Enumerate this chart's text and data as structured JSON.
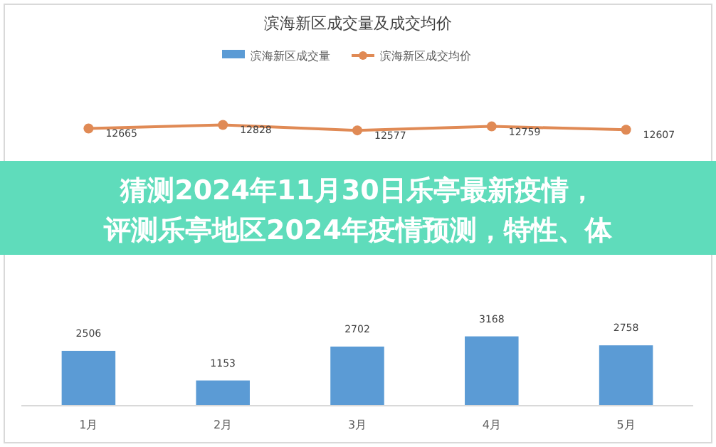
{
  "chart_data": {
    "type": "bar",
    "title": "滨海新区成交量及成交均价",
    "categories": [
      "1月",
      "2月",
      "3月",
      "4月",
      "5月"
    ],
    "series": [
      {
        "name": "滨海新区成交量",
        "color": "#5b9bd5",
        "values": [
          2506,
          1153,
          2702,
          3168,
          2758
        ]
      },
      {
        "name": "滨海新区成交均价",
        "type": "line",
        "color": "#e08a55",
        "values": [
          12665,
          12828,
          12577,
          12759,
          12607
        ]
      }
    ],
    "tick_labels": "x",
    "data_labels": true,
    "legend": "top",
    "marker": "circle",
    "annotations": [
      "猜测2024年11月30日乐亭最新疫情，评测乐亭地区2024年疫情预测，特性、体"
    ]
  }
}
